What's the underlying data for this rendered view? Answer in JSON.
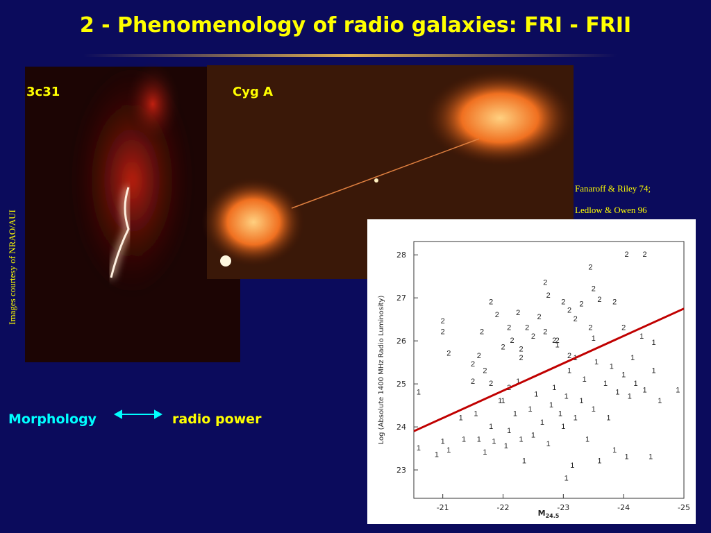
{
  "title": "2 - Phenomenology of radio galaxies: FRI - FRII",
  "image_labels": [
    "3c31",
    "Cyg A"
  ],
  "credit": "Images courtesy of NRAO/AUI",
  "reference": [
    "Fanaroff & Riley 74;",
    "Ledlow & Owen 96"
  ],
  "relation": {
    "left": "Morphology",
    "right": "radio power"
  },
  "chart_data": {
    "type": "scatter",
    "xlabel": "M",
    "xlabel_sub": "24.5",
    "ylabel": "Log (Absolute 1400 MHz Radio Luminosity)",
    "xlim": [
      -20.52,
      -25
    ],
    "ylim": [
      22.34,
      28.31
    ],
    "xticks": [
      -21,
      -22,
      -23,
      -24,
      -25
    ],
    "yticks": [
      23,
      24,
      25,
      26,
      27,
      28
    ],
    "series": [
      {
        "name": "1",
        "color": "#222222",
        "x": [
          -20.6,
          -20.6,
          -20.9,
          -21.0,
          -21.1,
          -21.3,
          -21.35,
          -21.55,
          -21.6,
          -21.7,
          -21.8,
          -21.85,
          -21.95,
          -22.05,
          -22.1,
          -22.2,
          -22.3,
          -22.35,
          -22.45,
          -22.5,
          -22.55,
          -22.65,
          -22.75,
          -22.8,
          -22.85,
          -22.95,
          -23.0,
          -23.05,
          -23.1,
          -23.15,
          -23.2,
          -23.3,
          -23.35,
          -23.4,
          -23.5,
          -23.55,
          -23.6,
          -23.7,
          -23.75,
          -23.8,
          -23.85,
          -23.9,
          -24.0,
          -24.05,
          -24.1,
          -24.15,
          -24.2,
          -24.35,
          -24.45,
          -24.5,
          -24.5,
          -24.3,
          -24.6,
          -24.9,
          -22.9,
          -23.5,
          -23.05,
          -23.2,
          -22.25,
          -22.0
        ],
        "values": [
          24.8,
          23.5,
          23.35,
          23.65,
          23.45,
          24.2,
          23.7,
          24.3,
          23.7,
          23.4,
          24.0,
          23.65,
          24.6,
          23.55,
          23.9,
          24.3,
          23.7,
          23.2,
          24.4,
          23.8,
          24.75,
          24.1,
          23.6,
          24.5,
          24.9,
          24.3,
          24.0,
          24.7,
          25.3,
          23.1,
          24.2,
          24.6,
          25.1,
          23.7,
          24.4,
          25.5,
          23.2,
          25.0,
          24.2,
          25.4,
          23.45,
          24.8,
          25.2,
          23.3,
          24.7,
          25.6,
          25.0,
          24.85,
          23.3,
          25.3,
          25.95,
          26.1,
          24.6,
          24.85,
          25.9,
          26.05,
          22.8,
          25.6,
          25.05,
          24.6
        ]
      },
      {
        "name": "2",
        "color": "#222222",
        "x": [
          -21,
          -21,
          -21.1,
          -21.5,
          -21.6,
          -21.7,
          -21.5,
          -21.65,
          -21.8,
          -21.9,
          -22.1,
          -22.15,
          -22.25,
          -22.3,
          -22.4,
          -22.5,
          -22.6,
          -22.7,
          -22.75,
          -22.9,
          -23.0,
          -23.1,
          -23.2,
          -23.3,
          -23.45,
          -23.5,
          -23.6,
          -23.1,
          -22.85,
          -22.1,
          -21.8,
          -22.3,
          -24.05,
          -24.35,
          -23.45,
          -22.7,
          -22.0,
          -23.85,
          -24.0
        ],
        "values": [
          26.45,
          26.2,
          25.7,
          25.45,
          25.65,
          25.3,
          25.05,
          26.2,
          26.9,
          26.6,
          26.3,
          26.0,
          26.65,
          25.8,
          26.3,
          26.1,
          26.55,
          26.2,
          27.05,
          26.0,
          26.9,
          26.7,
          26.5,
          26.85,
          26.3,
          27.2,
          26.95,
          25.65,
          26.0,
          24.9,
          25.0,
          25.6,
          28.0,
          28.0,
          27.7,
          27.35,
          25.85,
          26.9,
          26.3
        ]
      }
    ],
    "fit": {
      "x": [
        -20.52,
        -25
      ],
      "values": [
        23.9,
        26.75
      ],
      "color": "#c00000"
    }
  }
}
